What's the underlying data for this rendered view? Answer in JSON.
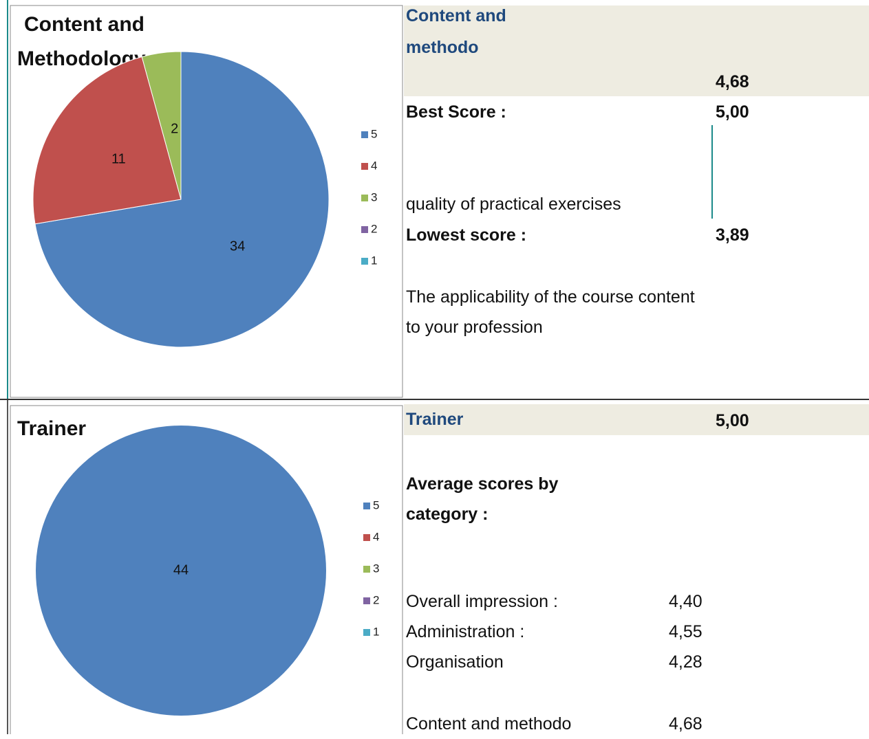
{
  "chart_data": [
    {
      "type": "pie",
      "title": "Content and Methodology",
      "categories": [
        "5",
        "4",
        "3",
        "2",
        "1"
      ],
      "values": [
        34,
        11,
        2,
        0,
        0
      ],
      "colors": [
        "#4f81bd",
        "#c0504d",
        "#9bbb59",
        "#8064a2",
        "#4bacc6"
      ],
      "legend": "right"
    },
    {
      "type": "pie",
      "title": "Trainer",
      "categories": [
        "5",
        "4",
        "3",
        "2",
        "1"
      ],
      "values": [
        44,
        0,
        0,
        0,
        0
      ],
      "colors": [
        "#4f81bd",
        "#c0504d",
        "#9bbb59",
        "#8064a2",
        "#4bacc6"
      ],
      "legend": "right"
    }
  ],
  "sections": [
    {
      "title": "Content and methodo",
      "score": "4,68",
      "best_label": "Best Score :",
      "best_score": "5,00",
      "best_item": "quality of practical exercises",
      "lowest_label": "Lowest score :",
      "lowest_score": "3,89",
      "lowest_item": "The applicability of the course content to your profession"
    },
    {
      "title": "Trainer",
      "score": "5,00",
      "heading": "Average scores by category :",
      "rows": [
        [
          "Overall impression :",
          "4,40"
        ],
        [
          "Administration :",
          "4,55"
        ],
        [
          "Organisation",
          "4,28"
        ],
        [
          "Content and methodo",
          "4,68"
        ]
      ]
    }
  ]
}
